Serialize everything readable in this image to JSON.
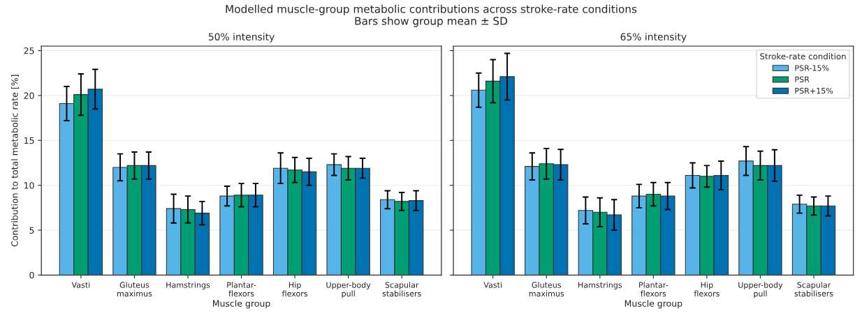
{
  "chart_data": [
    {
      "type": "bar",
      "title": "50% intensity",
      "xlabel": "Muscle group",
      "ylabel": "Contribution to total metabolic rate [%]",
      "annotations": [
        "Modelled muscle-group metabolic contributions across stroke-rate conditions",
        "Bars show group mean ± SD"
      ],
      "categories": [
        "Vasti",
        "Gluteus\nmaximus",
        "Hamstrings",
        "Plantar-\nflexors",
        "Hip\nflexors",
        "Upper-body\npull",
        "Scapular\nstabilisers"
      ],
      "ylim": [
        0,
        25.5
      ],
      "yticks": [
        0,
        5,
        10,
        15,
        20,
        25
      ],
      "grid": "y",
      "series": [
        {
          "color": "#56b4e9",
          "values": [
            19.1,
            12.0,
            7.4,
            8.8,
            11.9,
            12.3,
            8.4
          ],
          "errors": [
            1.9,
            1.5,
            1.6,
            1.1,
            1.7,
            1.2,
            1.0
          ]
        },
        {
          "color": "#009e73",
          "values": [
            20.1,
            12.2,
            7.3,
            8.9,
            11.7,
            11.9,
            8.2
          ],
          "errors": [
            2.3,
            1.5,
            1.5,
            1.3,
            1.4,
            1.3,
            1.0
          ]
        },
        {
          "color": "#0072b2",
          "values": [
            20.7,
            12.2,
            6.9,
            8.9,
            11.5,
            11.9,
            8.3
          ],
          "errors": [
            2.2,
            1.5,
            1.3,
            1.3,
            1.5,
            1.1,
            1.1
          ]
        }
      ]
    },
    {
      "type": "bar",
      "title": "65% intensity",
      "xlabel": "Muscle group",
      "legend_title": "Stroke-rate condition",
      "categories": [
        "Vasti",
        "Gluteus\nmaximus",
        "Hamstrings",
        "Plantar-\nflexors",
        "Hip\nflexors",
        "Upper-body\npull",
        "Scapular\nstabilisers"
      ],
      "ylim": [
        0,
        25.5
      ],
      "yticks": [
        0,
        5,
        10,
        15,
        20,
        25
      ],
      "grid": "y",
      "legend": "top right",
      "tick_labels": "x",
      "series": [
        {
          "name": "PSR-15%",
          "color": "#56b4e9",
          "values": [
            20.6,
            12.1,
            7.2,
            8.8,
            11.1,
            12.7,
            7.9
          ],
          "errors": [
            1.9,
            1.5,
            1.5,
            1.3,
            1.4,
            1.6,
            1.0
          ]
        },
        {
          "name": "PSR",
          "color": "#009e73",
          "values": [
            21.6,
            12.4,
            7.0,
            9.0,
            11.0,
            12.2,
            7.7
          ],
          "errors": [
            2.4,
            1.7,
            1.6,
            1.3,
            1.2,
            1.6,
            1.0
          ]
        },
        {
          "name": "PSR+15%",
          "color": "#0072b2",
          "values": [
            22.1,
            12.3,
            6.7,
            8.8,
            11.1,
            12.2,
            7.7
          ],
          "errors": [
            2.6,
            1.7,
            1.7,
            1.5,
            1.6,
            1.75,
            1.1
          ]
        }
      ]
    }
  ]
}
